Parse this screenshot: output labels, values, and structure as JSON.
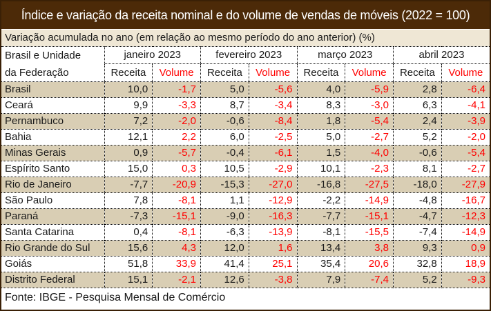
{
  "title": "Índice e variação da receita nominal e do volume de vendas de móveis (2022 = 100)",
  "subtitle": "Variação acumulada no ano (em relação ao mesmo período do ano anterior) (%)",
  "row_header": {
    "line1": "Brasil e Unidade",
    "line2": "da Federação"
  },
  "months": [
    "janeiro 2023",
    "fevereiro 2023",
    "março 2023",
    "abril 2023"
  ],
  "measures": {
    "receita": "Receita",
    "volume": "Volume"
  },
  "footer": "Fonte: IBGE - Pesquisa Mensal de Comércio",
  "colors": {
    "title_bg": "#4C2A08",
    "title_text": "#FFFFFF",
    "subtitle_bg": "#EFE7D5",
    "stripe_bg": "#D9CEB4",
    "receita_text": "#1A1A1A",
    "volume_text": "#FF0000",
    "grid": "#000000"
  },
  "chart_data": {
    "type": "table",
    "title": "Índice e variação da receita nominal e do volume de vendas de móveis (2022 = 100)",
    "subtitle": "Variação acumulada no ano (em relação ao mesmo período do ano anterior) (%)",
    "columns": [
      "Brasil e Unidade da Federação",
      "janeiro 2023 - Receita",
      "janeiro 2023 - Volume",
      "fevereiro 2023 - Receita",
      "fevereiro 2023 - Volume",
      "março 2023 - Receita",
      "março 2023 - Volume",
      "abril 2023 - Receita",
      "abril 2023 - Volume"
    ],
    "rows": [
      {
        "name": "Brasil",
        "values": [
          "10,0",
          "-1,7",
          "5,0",
          "-5,6",
          "4,0",
          "-5,9",
          "2,8",
          "-6,4"
        ]
      },
      {
        "name": "Ceará",
        "values": [
          "9,9",
          "-3,3",
          "8,7",
          "-3,4",
          "8,3",
          "-3,0",
          "6,3",
          "-4,1"
        ]
      },
      {
        "name": "Pernambuco",
        "values": [
          "7,2",
          "-2,0",
          "-0,6",
          "-8,4",
          "1,8",
          "-5,4",
          "2,4",
          "-3,9"
        ]
      },
      {
        "name": "Bahia",
        "values": [
          "12,1",
          "2,2",
          "6,0",
          "-2,5",
          "5,0",
          "-2,7",
          "5,2",
          "-2,0"
        ]
      },
      {
        "name": "Minas Gerais",
        "values": [
          "0,9",
          "-5,7",
          "-0,4",
          "-6,1",
          "1,5",
          "-4,0",
          "-0,6",
          "-5,4"
        ]
      },
      {
        "name": "Espírito Santo",
        "values": [
          "15,0",
          "0,3",
          "10,5",
          "-2,9",
          "10,1",
          "-2,3",
          "8,1",
          "-2,7"
        ]
      },
      {
        "name": "Rio de Janeiro",
        "values": [
          "-7,7",
          "-20,9",
          "-15,3",
          "-27,0",
          "-16,8",
          "-27,5",
          "-18,0",
          "-27,9"
        ]
      },
      {
        "name": "São Paulo",
        "values": [
          "7,8",
          "-8,1",
          "1,1",
          "-12,9",
          "-2,2",
          "-14,9",
          "-4,8",
          "-16,7"
        ]
      },
      {
        "name": "Paraná",
        "values": [
          "-7,3",
          "-15,1",
          "-9,0",
          "-16,3",
          "-7,7",
          "-15,1",
          "-4,7",
          "-12,3"
        ]
      },
      {
        "name": "Santa Catarina",
        "values": [
          "0,4",
          "-8,1",
          "-6,3",
          "-13,9",
          "-8,1",
          "-15,5",
          "-7,4",
          "-14,9"
        ]
      },
      {
        "name": "Rio Grande do Sul",
        "values": [
          "15,6",
          "4,3",
          "12,0",
          "1,6",
          "13,4",
          "3,8",
          "9,3",
          "0,9"
        ]
      },
      {
        "name": "Goiás",
        "values": [
          "51,8",
          "33,9",
          "41,4",
          "25,1",
          "35,4",
          "20,6",
          "32,8",
          "18,9"
        ]
      },
      {
        "name": "Distrito Federal",
        "values": [
          "15,1",
          "-2,1",
          "12,6",
          "-3,8",
          "7,9",
          "-7,4",
          "5,2",
          "-9,3"
        ]
      }
    ]
  }
}
